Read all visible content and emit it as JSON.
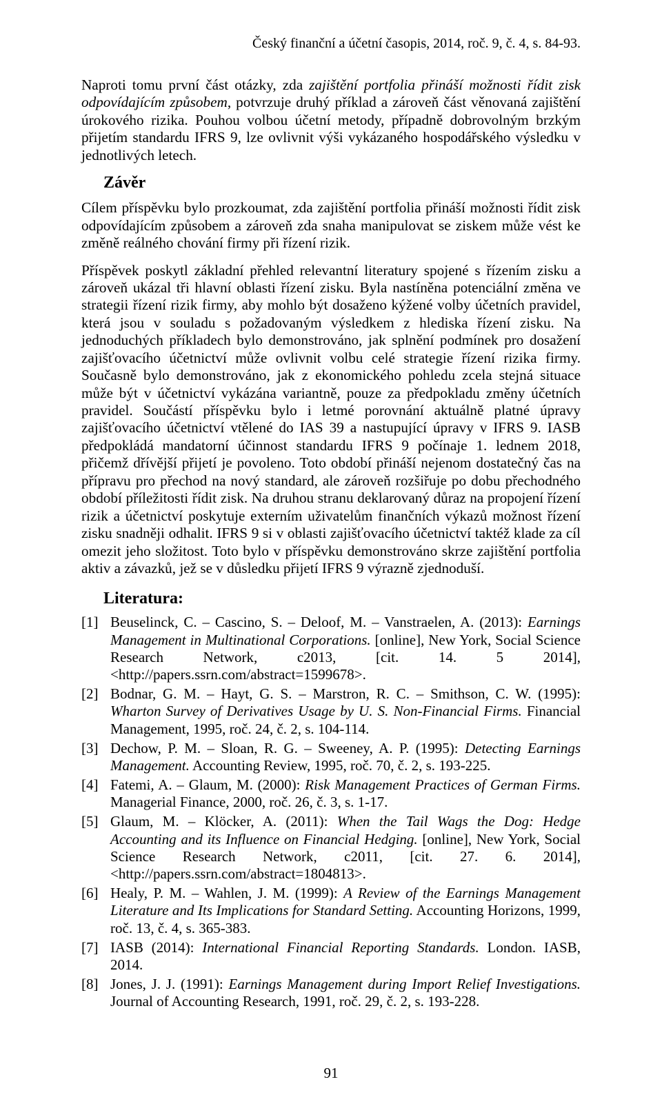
{
  "running_head": "Český finanční a účetní časopis, 2014, roč. 9, č. 4, s. 84-93.",
  "p1_pre": "Naproti tomu první část otázky, zda ",
  "p1_em": "zajištění portfolia přináší možnosti řídit zisk odpovídajícím způsobem",
  "p1_post": ", potvrzuje druhý příklad a zároveň část věnovaná zajištění úrokového rizika. Pouhou volbou účetní metody, případně dobrovolným brzkým přijetím standardu IFRS 9, lze ovlivnit výši vykázaného hospodářského výsledku v jednotlivých letech.",
  "zaver_heading": "Závěr",
  "p2": "Cílem příspěvku bylo prozkoumat, zda zajištění portfolia přináší možnosti řídit zisk odpovídajícím způsobem a zároveň zda snaha manipulovat se ziskem může vést ke změně reálného chování firmy při řízení rizik.",
  "p3": "Příspěvek poskytl základní přehled relevantní literatury spojené s řízením zisku a zároveň ukázal tři hlavní oblasti řízení zisku. Byla nastíněna potenciální změna ve strategii řízení rizik firmy, aby mohlo být dosaženo kýžené volby účetních pravidel, která jsou v souladu s požadovaným výsledkem z hlediska řízení zisku. Na jednoduchých příkladech bylo demonstrováno, jak splnění podmínek pro dosažení zajišťovacího účetnictví může ovlivnit volbu celé strategie řízení rizika firmy. Současně bylo demonstrováno, jak z ekonomického pohledu zcela stejná situace může být v účetnictví vykázána variantně, pouze za předpokladu změny účetních pravidel. Součástí příspěvku bylo i letmé porovnání aktuálně platné úpravy zajišťovacího účetnictví vtělené do IAS 39 a nastupující úpravy v IFRS 9. IASB předpokládá mandatorní účinnost standardu IFRS 9 počínaje 1. lednem 2018, přičemž dřívější přijetí je povoleno. Toto období přináší nejenom dostatečný čas na přípravu pro přechod na nový standard, ale zároveň rozšiřuje po dobu přechodného období příležitosti řídit zisk. Na druhou stranu deklarovaný důraz na propojení řízení rizik a účetnictví poskytuje externím uživatelům finančních výkazů možnost řízení zisku snadněji odhalit. IFRS 9 si v oblasti zajišťovacího účetnictví taktéž klade za cíl omezit jeho složitost. Toto bylo v příspěvku demonstrováno skrze zajištění portfolia aktiv a závazků, jež se v důsledku přijetí IFRS 9 výrazně zjednoduší.",
  "literature_heading": "Literatura:",
  "refs": [
    {
      "pre": "Beuselinck, C. – Cascino, S. – Deloof, M. – Vanstraelen, A. (2013): ",
      "em": "Earnings Management in Multinational Corporations.",
      "post": " [online], New York, Social Science Research Network, c2013, [cit. 14. 5 2014], <http://papers.ssrn.com/abstract=1599678>."
    },
    {
      "pre": "Bodnar, G. M. – Hayt, G. S. – Marstron, R. C. – Smithson, C. W. (1995): ",
      "em": "Wharton Survey of Derivatives Usage by U. S. Non-Financial Firms.",
      "post": " Financial Management, 1995, roč. 24, č. 2, s. 104-114."
    },
    {
      "pre": "Dechow, P. M. – Sloan, R. G. – Sweeney, A. P. (1995): ",
      "em": "Detecting Earnings Management.",
      "post": " Accounting Review, 1995, roč. 70, č. 2, s. 193-225."
    },
    {
      "pre": "Fatemi, A. – Glaum, M. (2000): ",
      "em": "Risk Management Practices of German Firms.",
      "post": " Managerial Finance, 2000, roč. 26, č. 3, s. 1-17."
    },
    {
      "pre": "Glaum, M. – Klöcker, A. (2011): ",
      "em": "When the Tail Wags the Dog: Hedge Accounting and its Influence on Financial Hedging.",
      "post": " [online], New York, Social Science Research Network, c2011, [cit. 27. 6. 2014], <http://papers.ssrn.com/abstract=1804813>."
    },
    {
      "pre": "Healy, P. M. – Wahlen, J. M. (1999): ",
      "em": "A Review of the Earnings Management Literature and Its Implications for Standard Setting.",
      "post": " Accounting Horizons, 1999, roč. 13, č. 4, s. 365-383."
    },
    {
      "pre": "IASB (2014): ",
      "em": "International Financial Reporting Standards.",
      "post": " London. IASB, 2014."
    },
    {
      "pre": "Jones, J. J. (1991): ",
      "em": "Earnings Management during Import Relief Investigations.",
      "post": " Journal of Accounting Research, 1991, roč. 29, č. 2, s. 193-228."
    }
  ],
  "page_number": "91"
}
